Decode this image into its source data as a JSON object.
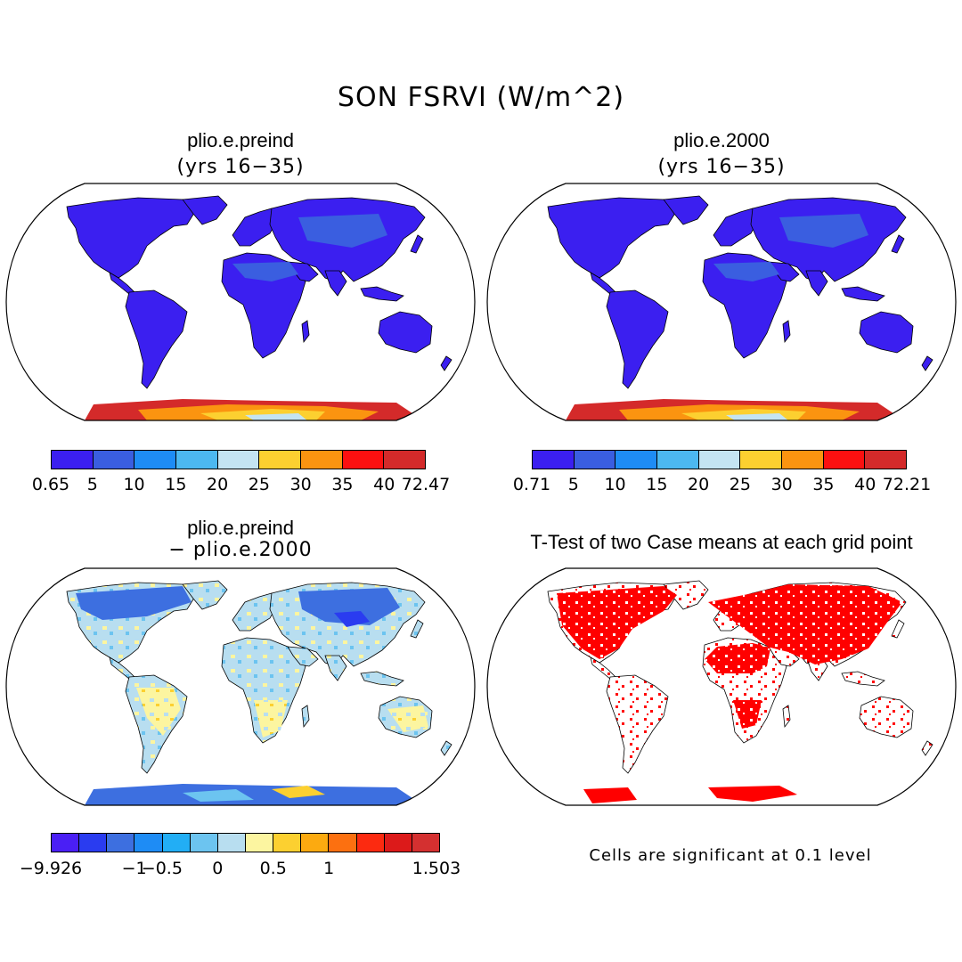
{
  "title": "SON FSRVI (W/m^2)",
  "panels": [
    {
      "title": "plio.e.preind",
      "subtitle": "(yrs 16−35)"
    },
    {
      "title": "plio.e.2000",
      "subtitle": "(yrs 16−35)"
    },
    {
      "title": "plio.e.preind",
      "subtitle": "− plio.e.2000"
    },
    {
      "title": "T-Test of two Case means at each grid point",
      "subtitle": ""
    }
  ],
  "note": "Cells are significant at 0.1 level",
  "chart_data": [
    {
      "type": "heatmap",
      "title": "plio.e.preind",
      "subtitle": "(yrs 16−35)",
      "projection": "Robinson world map",
      "colorbar": {
        "levels": [
          "0.65",
          "5",
          "10",
          "15",
          "20",
          "25",
          "30",
          "35",
          "40",
          "72.47"
        ],
        "colors": [
          "#3b1ff0",
          "#3a5ee0",
          "#1e8cf5",
          "#4cb8f0",
          "#c4e4f2",
          "#fcd030",
          "#fb9410",
          "#fc1010",
          "#d42a2a"
        ]
      },
      "regions": {
        "land": "0.65-5",
        "antarctica_edge": "35-72.47",
        "antarctica_interior": "20-25"
      }
    },
    {
      "type": "heatmap",
      "title": "plio.e.2000",
      "subtitle": "(yrs 16−35)",
      "projection": "Robinson world map",
      "colorbar": {
        "levels": [
          "0.71",
          "5",
          "10",
          "15",
          "20",
          "25",
          "30",
          "35",
          "40",
          "72.21"
        ],
        "colors": [
          "#3b1ff0",
          "#3a5ee0",
          "#1e8cf5",
          "#4cb8f0",
          "#c4e4f2",
          "#fcd030",
          "#fb9410",
          "#fc1010",
          "#d42a2a"
        ]
      },
      "regions": {
        "land": "0.71-5",
        "antarctica_edge": "35-72.21",
        "antarctica_interior": "20-25"
      }
    },
    {
      "type": "heatmap",
      "title": "plio.e.preind",
      "subtitle": "− plio.e.2000",
      "projection": "Robinson world map",
      "colorbar": {
        "levels": [
          "-9.926",
          "",
          "",
          "-1",
          "-0.5",
          "",
          "0",
          "",
          "0.5",
          "",
          "1",
          "",
          "",
          "1.503"
        ],
        "tick_labels": [
          {
            "label": "−9.926",
            "index": 0
          },
          {
            "label": "−1",
            "index": 3
          },
          {
            "label": "−0.5",
            "index": 4
          },
          {
            "label": "0",
            "index": 6
          },
          {
            "label": "0.5",
            "index": 8
          },
          {
            "label": "1",
            "index": 10
          },
          {
            "label": "1.503",
            "index": 13
          }
        ],
        "colors": [
          "#4a1ff5",
          "#2a3cf0",
          "#3d6fe0",
          "#1e8cf5",
          "#22aef5",
          "#6cc4f0",
          "#b8def0",
          "#fcf5a0",
          "#fcd030",
          "#fcaa10",
          "#fc7010",
          "#fc2a10",
          "#dc1a1a",
          "#d43030"
        ]
      }
    },
    {
      "type": "heatmap",
      "title": "T-Test of two Case means at each grid point",
      "projection": "Robinson world map",
      "significance_color": "#ff0000",
      "note": "Cells are significant at 0.1 level"
    }
  ]
}
